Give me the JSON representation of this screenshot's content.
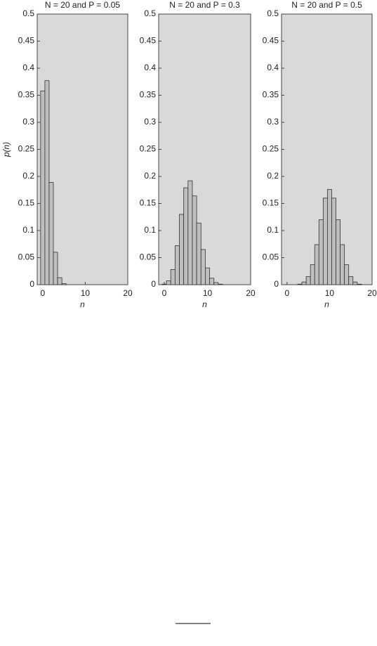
{
  "chart_data": [
    {
      "type": "bar",
      "title": "N = 20 and P = 0.05",
      "xlabel": "n",
      "ylabel": "p(n)",
      "color": "#bfbfbf",
      "background": "#d9d9d9",
      "x": [
        0,
        1,
        2,
        3,
        4,
        5,
        6,
        7,
        8,
        9,
        10,
        11,
        12,
        13,
        14,
        15,
        16,
        17,
        18,
        19,
        20
      ],
      "values": [
        0.358,
        0.377,
        0.189,
        0.06,
        0.013,
        0.002,
        0,
        0,
        0,
        0,
        0,
        0,
        0,
        0,
        0,
        0,
        0,
        0,
        0,
        0,
        0
      ],
      "xlim": [
        -1.3,
        20
      ],
      "xticks": [
        0,
        10,
        20
      ],
      "ylim": [
        0,
        0.5
      ],
      "yticks": [
        0,
        0.05,
        0.1,
        0.15,
        0.2,
        0.25,
        0.3,
        0.35,
        0.4,
        0.45,
        0.5
      ]
    },
    {
      "type": "bar",
      "title": "N = 20 and P = 0.3",
      "xlabel": "n",
      "color": "#bfbfbf",
      "background": "#d9d9d9",
      "x": [
        0,
        1,
        2,
        3,
        4,
        5,
        6,
        7,
        8,
        9,
        10,
        11,
        12,
        13,
        14,
        15,
        16,
        17,
        18,
        19,
        20
      ],
      "values": [
        0.001,
        0.007,
        0.028,
        0.072,
        0.13,
        0.179,
        0.192,
        0.164,
        0.114,
        0.065,
        0.031,
        0.012,
        0.004,
        0.001,
        0,
        0,
        0,
        0,
        0,
        0,
        0
      ],
      "xlim": [
        -1.3,
        20
      ],
      "xticks": [
        0,
        10,
        20
      ],
      "ylim": [
        0,
        0.5
      ],
      "yticks": [
        0,
        0.05,
        0.1,
        0.15,
        0.2,
        0.25,
        0.3,
        0.35,
        0.4,
        0.45,
        0.5
      ]
    },
    {
      "type": "bar",
      "title": "N = 20 and P = 0.5",
      "xlabel": "n",
      "color": "#bfbfbf",
      "background": "#d9d9d9",
      "x": [
        0,
        1,
        2,
        3,
        4,
        5,
        6,
        7,
        8,
        9,
        10,
        11,
        12,
        13,
        14,
        15,
        16,
        17,
        18,
        19,
        20
      ],
      "values": [
        0,
        0,
        0,
        0.001,
        0.005,
        0.015,
        0.037,
        0.074,
        0.12,
        0.16,
        0.176,
        0.16,
        0.12,
        0.074,
        0.037,
        0.015,
        0.005,
        0.001,
        0,
        0,
        0
      ],
      "xlim": [
        -1.3,
        20
      ],
      "xticks": [
        0,
        10,
        20
      ],
      "ylim": [
        0,
        0.5
      ],
      "yticks": [
        0,
        0.05,
        0.1,
        0.15,
        0.2,
        0.25,
        0.3,
        0.35,
        0.4,
        0.45,
        0.5
      ]
    }
  ]
}
